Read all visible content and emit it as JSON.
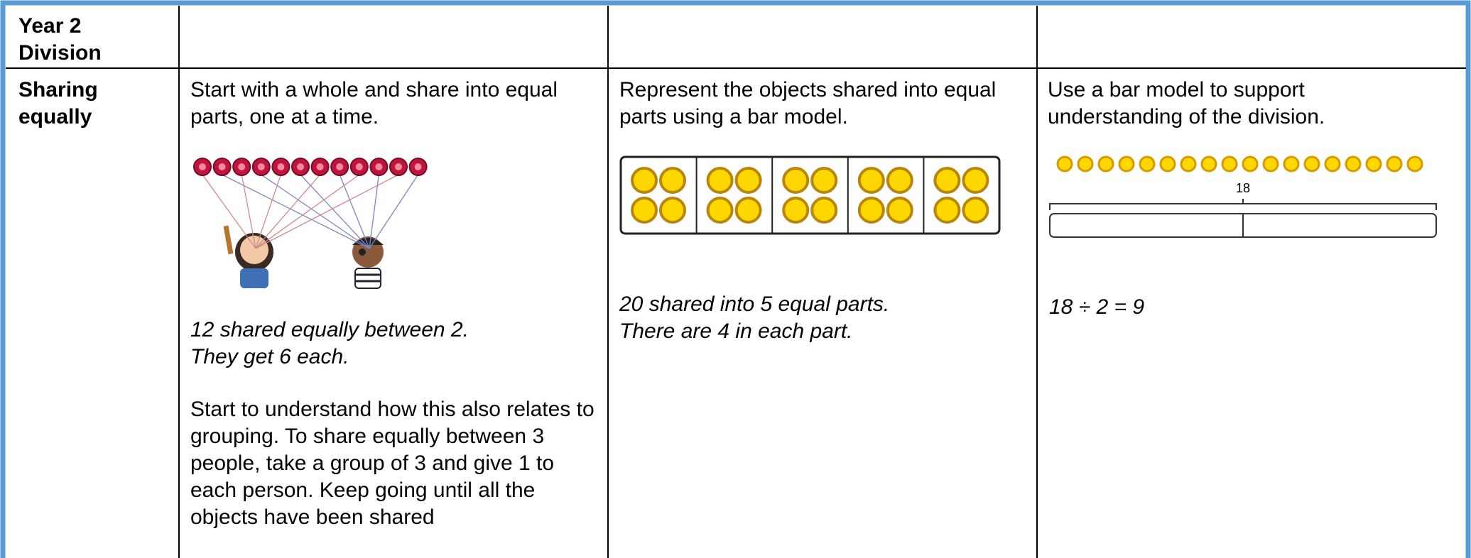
{
  "table": {
    "header": [
      "Year 2",
      "Division"
    ],
    "row_label": [
      "Sharing",
      "equally"
    ],
    "columns": [
      {
        "text": "Start with a whole and share into equal parts, one at a time.",
        "caption": [
          "12 shared equally between 2.",
          "They get 6 each."
        ],
        "note": "Start to understand how this also relates to grouping. To share equally between 3 people, take a group of 3 and give 1 to each person. Keep going until all the objects have been shared"
      },
      {
        "text": "Represent the objects shared into equal parts using a bar model.",
        "caption": [
          "20 shared into 5 equal parts.",
          "There are 4 in each part."
        ]
      },
      {
        "text": "Use a bar model to support understanding of the division.",
        "bar_label": "18",
        "equation": "18 ÷ 2 = 9"
      }
    ]
  }
}
